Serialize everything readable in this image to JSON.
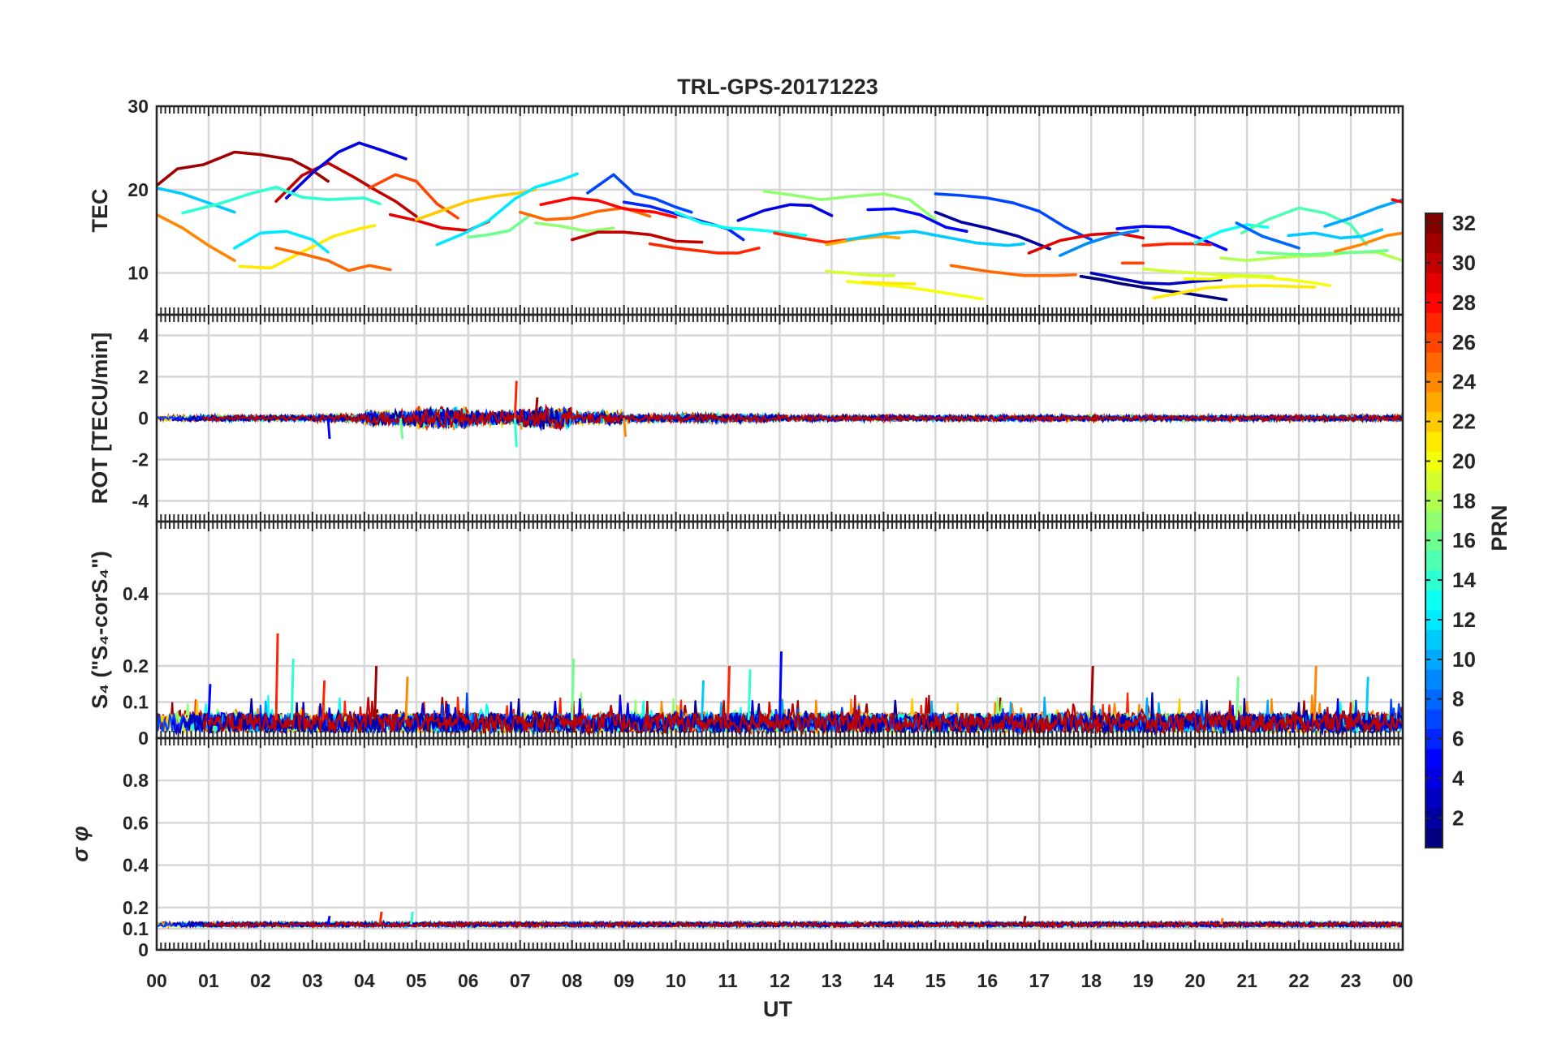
{
  "title": "TRL-GPS-20171223",
  "xlabel": "UT",
  "x_ticks": [
    "00",
    "01",
    "02",
    "03",
    "04",
    "05",
    "06",
    "07",
    "08",
    "09",
    "10",
    "11",
    "12",
    "13",
    "14",
    "15",
    "16",
    "17",
    "18",
    "19",
    "20",
    "21",
    "22",
    "23",
    "00"
  ],
  "colorbar": {
    "label": "PRN",
    "range": [
      1,
      32
    ],
    "ticks": [
      "2",
      "4",
      "6",
      "8",
      "10",
      "12",
      "14",
      "16",
      "18",
      "20",
      "22",
      "24",
      "26",
      "28",
      "30",
      "32"
    ],
    "colormap": "jet"
  },
  "chart_data": [
    {
      "type": "line",
      "panel": "TEC",
      "ylabel": "TEC",
      "ylim": [
        5,
        30
      ],
      "yticks": [
        "10",
        "20",
        "30"
      ],
      "xlim": [
        0,
        24
      ],
      "series": [
        {
          "prn": 31,
          "x": [
            0.0,
            0.4,
            0.9,
            1.5,
            2.0,
            2.6,
            3.0,
            3.3
          ],
          "y": [
            20.5,
            22.5,
            23.0,
            24.5,
            24.2,
            23.6,
            22.3,
            21.0
          ]
        },
        {
          "prn": 30,
          "x": [
            2.3,
            2.8,
            3.3,
            3.8,
            4.2,
            4.6,
            5.0
          ],
          "y": [
            18.6,
            21.7,
            23.2,
            21.5,
            20.0,
            18.6,
            16.8
          ]
        },
        {
          "prn": 4,
          "x": [
            2.5,
            3.0,
            3.5,
            3.9,
            4.3,
            4.8
          ],
          "y": [
            19.0,
            22.0,
            24.5,
            25.6,
            24.8,
            23.7
          ]
        },
        {
          "prn": 11,
          "x": [
            0.0,
            0.5,
            1.0,
            1.5
          ],
          "y": [
            20.2,
            19.5,
            18.4,
            17.3
          ]
        },
        {
          "prn": 14,
          "x": [
            0.5,
            1.2,
            1.8,
            2.3,
            2.8,
            3.3,
            4.0,
            4.3
          ],
          "y": [
            17.2,
            18.3,
            19.5,
            20.3,
            19.1,
            18.8,
            19.0,
            18.3
          ]
        },
        {
          "prn": 24,
          "x": [
            0.0,
            0.5,
            1.0,
            1.5
          ],
          "y": [
            17.0,
            15.4,
            13.3,
            11.5
          ]
        },
        {
          "prn": 21,
          "x": [
            1.6,
            2.2,
            2.8,
            3.4,
            3.9,
            4.2
          ],
          "y": [
            10.8,
            10.6,
            12.5,
            14.4,
            15.3,
            15.7
          ]
        },
        {
          "prn": 25,
          "x": [
            2.3,
            2.8,
            3.3,
            3.7,
            4.1,
            4.5
          ],
          "y": [
            13.0,
            12.3,
            11.5,
            10.3,
            10.9,
            10.4
          ]
        },
        {
          "prn": 12,
          "x": [
            1.5,
            2.0,
            2.5,
            3.0,
            3.3
          ],
          "y": [
            13.0,
            14.8,
            15.0,
            14.0,
            12.5
          ]
        },
        {
          "prn": 26,
          "x": [
            4.1,
            4.6,
            5.0,
            5.4,
            5.8
          ],
          "y": [
            20.2,
            21.8,
            21.0,
            18.3,
            16.6
          ]
        },
        {
          "prn": 29,
          "x": [
            4.5,
            5.0,
            5.5,
            6.0,
            6.4
          ],
          "y": [
            17.0,
            16.3,
            15.4,
            15.1,
            16.2
          ]
        },
        {
          "prn": 22,
          "x": [
            5.0,
            5.5,
            6.0,
            6.5,
            7.0,
            7.3
          ],
          "y": [
            16.4,
            17.5,
            18.6,
            19.2,
            19.6,
            20.0
          ]
        },
        {
          "prn": 16,
          "x": [
            6.0,
            6.4,
            6.8,
            7.2
          ],
          "y": [
            14.3,
            14.6,
            15.1,
            17.0
          ]
        },
        {
          "prn": 12,
          "x": [
            5.4,
            5.9,
            6.4,
            6.9,
            7.3,
            7.8,
            8.1
          ],
          "y": [
            13.4,
            14.7,
            16.3,
            18.9,
            20.3,
            21.2,
            21.9
          ]
        },
        {
          "prn": 25,
          "x": [
            7.0,
            7.5,
            8.0,
            8.5,
            9.0,
            9.5
          ],
          "y": [
            17.3,
            16.4,
            16.6,
            17.4,
            17.8,
            16.8
          ]
        },
        {
          "prn": 28,
          "x": [
            7.4,
            8.0,
            8.5,
            9.0,
            9.6,
            10.0
          ],
          "y": [
            18.2,
            19.0,
            18.7,
            17.7,
            17.3,
            16.7
          ]
        },
        {
          "prn": 7,
          "x": [
            8.3,
            8.8,
            9.2,
            9.6,
            10.0,
            10.3
          ],
          "y": [
            19.6,
            21.8,
            19.5,
            18.9,
            17.9,
            17.3
          ]
        },
        {
          "prn": 17,
          "x": [
            7.3,
            7.8,
            8.3,
            8.8
          ],
          "y": [
            16.0,
            15.6,
            15.0,
            15.4
          ]
        },
        {
          "prn": 30,
          "x": [
            8.0,
            8.5,
            9.0,
            9.5,
            10.0,
            10.5
          ],
          "y": [
            14.0,
            14.9,
            14.9,
            14.6,
            13.8,
            13.7
          ]
        },
        {
          "prn": 27,
          "x": [
            9.5,
            10.0,
            10.4,
            10.8,
            11.2,
            11.6
          ],
          "y": [
            13.5,
            13.0,
            12.7,
            12.4,
            12.4,
            13.0
          ]
        },
        {
          "prn": 6,
          "x": [
            9.0,
            9.5,
            10.0,
            10.5,
            11.0,
            11.3
          ],
          "y": [
            18.5,
            18.0,
            17.1,
            16.2,
            15.3,
            14.0
          ]
        },
        {
          "prn": 13,
          "x": [
            10.0,
            10.5,
            11.0,
            11.5,
            12.0,
            12.5
          ],
          "y": [
            17.3,
            16.0,
            15.4,
            15.2,
            14.9,
            14.5
          ]
        },
        {
          "prn": 4,
          "x": [
            11.2,
            11.7,
            12.2,
            12.6,
            13.0
          ],
          "y": [
            16.3,
            17.5,
            18.2,
            18.1,
            16.9
          ]
        },
        {
          "prn": 17,
          "x": [
            11.7,
            12.2,
            12.8,
            13.4,
            14.0,
            14.5,
            15.0
          ],
          "y": [
            19.8,
            19.4,
            18.8,
            19.2,
            19.5,
            18.8,
            16.4
          ]
        },
        {
          "prn": 27,
          "x": [
            11.9,
            12.4,
            12.9,
            13.3
          ],
          "y": [
            14.8,
            14.2,
            13.7,
            14.0
          ]
        },
        {
          "prn": 23,
          "x": [
            12.9,
            13.5,
            14.0,
            14.3
          ],
          "y": [
            13.4,
            14.1,
            14.4,
            14.2
          ]
        },
        {
          "prn": 5,
          "x": [
            13.7,
            14.2,
            14.7,
            15.2,
            15.6
          ],
          "y": [
            17.6,
            17.7,
            17.0,
            15.5,
            15.0
          ]
        },
        {
          "prn": 11,
          "x": [
            13.3,
            14.0,
            14.6,
            15.2,
            15.8,
            16.4,
            16.7
          ],
          "y": [
            14.0,
            14.7,
            15.0,
            14.3,
            13.6,
            13.3,
            13.5
          ]
        },
        {
          "prn": 19,
          "x": [
            12.9,
            13.3,
            13.8,
            14.2
          ],
          "y": [
            10.2,
            10.0,
            9.7,
            9.7
          ]
        },
        {
          "prn": 20,
          "x": [
            13.3,
            13.8,
            14.3,
            14.8,
            15.3,
            15.9
          ],
          "y": [
            9.0,
            8.7,
            8.4,
            8.0,
            7.5,
            6.9
          ]
        },
        {
          "prn": 21,
          "x": [
            13.6,
            14.0,
            14.6
          ],
          "y": [
            8.9,
            8.8,
            8.7
          ]
        },
        {
          "prn": 7,
          "x": [
            15.0,
            15.5,
            16.0,
            16.5,
            17.0,
            17.5,
            18.0
          ],
          "y": [
            19.5,
            19.3,
            19.0,
            18.4,
            17.4,
            15.5,
            14.0
          ]
        },
        {
          "prn": 2,
          "x": [
            15.0,
            15.5,
            16.0,
            16.6,
            17.2
          ],
          "y": [
            17.3,
            16.1,
            15.4,
            14.4,
            12.9
          ]
        },
        {
          "prn": 25,
          "x": [
            15.3,
            16.0,
            16.7,
            17.3,
            17.7
          ],
          "y": [
            10.9,
            10.2,
            9.7,
            9.7,
            9.8
          ]
        },
        {
          "prn": 29,
          "x": [
            16.8,
            17.4,
            18.0,
            18.5,
            19.0
          ],
          "y": [
            12.4,
            13.9,
            14.6,
            14.8,
            14.2
          ]
        },
        {
          "prn": 9,
          "x": [
            17.4,
            17.9,
            18.4,
            18.9
          ],
          "y": [
            12.1,
            13.5,
            14.5,
            15.1
          ]
        },
        {
          "prn": 1,
          "x": [
            17.8,
            18.2,
            18.6,
            19.0,
            19.4,
            19.8,
            20.2,
            20.6
          ],
          "y": [
            9.6,
            9.2,
            8.7,
            8.3,
            7.9,
            7.6,
            7.2,
            6.8
          ]
        },
        {
          "prn": 3,
          "x": [
            18.0,
            18.5,
            19.0,
            19.5,
            20.0,
            20.5
          ],
          "y": [
            10.0,
            9.4,
            8.8,
            8.7,
            9.0,
            9.2
          ]
        },
        {
          "prn": 5,
          "x": [
            18.5,
            19.0,
            19.5,
            20.0,
            20.6
          ],
          "y": [
            15.3,
            15.6,
            15.5,
            14.4,
            12.8
          ]
        },
        {
          "prn": 27,
          "x": [
            19.0,
            19.5,
            20.0,
            20.3
          ],
          "y": [
            13.3,
            13.5,
            13.5,
            13.4
          ]
        },
        {
          "prn": 26,
          "x": [
            18.6,
            19.0
          ],
          "y": [
            11.2,
            11.2
          ]
        },
        {
          "prn": 20,
          "x": [
            19.8,
            20.3,
            20.8,
            21.3,
            21.8,
            22.3,
            22.6
          ],
          "y": [
            9.3,
            9.3,
            9.6,
            9.5,
            9.2,
            8.8,
            8.5
          ]
        },
        {
          "prn": 19,
          "x": [
            19.0,
            19.5,
            20.0,
            20.5,
            21.0,
            21.5
          ],
          "y": [
            10.5,
            10.2,
            10.0,
            9.8,
            9.7,
            9.6
          ]
        },
        {
          "prn": 21,
          "x": [
            19.2,
            19.7,
            20.2,
            20.7,
            21.3,
            21.8,
            22.3
          ],
          "y": [
            7.0,
            7.6,
            8.2,
            8.4,
            8.5,
            8.4,
            8.3
          ]
        },
        {
          "prn": 13,
          "x": [
            20.0,
            20.5,
            21.0,
            21.4
          ],
          "y": [
            13.6,
            15.0,
            15.8,
            15.5
          ]
        },
        {
          "prn": 15,
          "x": [
            20.9,
            21.4,
            22.0,
            22.5,
            23.0,
            23.3
          ],
          "y": [
            14.8,
            16.4,
            17.8,
            17.2,
            15.8,
            13.4
          ]
        },
        {
          "prn": 8,
          "x": [
            20.8,
            21.3,
            21.8,
            22.0
          ],
          "y": [
            16.0,
            14.4,
            13.4,
            13.0
          ]
        },
        {
          "prn": 11,
          "x": [
            21.8,
            22.3,
            22.8,
            23.2,
            23.6
          ],
          "y": [
            14.5,
            14.8,
            14.2,
            14.4,
            15.2
          ]
        },
        {
          "prn": 18,
          "x": [
            20.5,
            21.0,
            21.5,
            22.0,
            22.5,
            23.0,
            23.5,
            24.0
          ],
          "y": [
            11.8,
            11.5,
            11.8,
            12.0,
            12.1,
            12.5,
            12.5,
            11.5
          ]
        },
        {
          "prn": 16,
          "x": [
            21.2,
            21.7,
            22.2,
            22.7,
            23.2,
            23.7
          ],
          "y": [
            12.5,
            12.3,
            12.2,
            12.4,
            12.5,
            12.7
          ]
        },
        {
          "prn": 10,
          "x": [
            22.5,
            23.0,
            23.5,
            24.0
          ],
          "y": [
            15.6,
            16.6,
            17.8,
            18.8
          ]
        },
        {
          "prn": 24,
          "x": [
            22.7,
            23.2,
            23.7,
            24.0
          ],
          "y": [
            12.6,
            13.4,
            14.5,
            14.8
          ]
        },
        {
          "prn": 28,
          "x": [
            23.8,
            24.0
          ],
          "y": [
            18.8,
            18.5
          ]
        }
      ]
    },
    {
      "type": "line",
      "panel": "ROT",
      "ylabel": "ROT [TECU/min]",
      "ylim": [
        -5,
        5
      ],
      "yticks": [
        "-4",
        "-2",
        "0",
        "2",
        "4"
      ],
      "xlim": [
        0,
        24
      ],
      "baseline": 0,
      "noise_amplitude_by_hour": [
        0.15,
        0.15,
        0.15,
        0.2,
        0.4,
        0.6,
        0.4,
        0.6,
        0.35,
        0.2,
        0.25,
        0.2,
        0.15,
        0.15,
        0.15,
        0.15,
        0.15,
        0.15,
        0.15,
        0.15,
        0.15,
        0.15,
        0.15,
        0.15
      ],
      "spikes": [
        {
          "x": 6.9,
          "y": 1.8
        },
        {
          "x": 6.9,
          "y": -1.4
        },
        {
          "x": 3.3,
          "y": -1.0
        },
        {
          "x": 7.3,
          "y": 1.0
        },
        {
          "x": 9.0,
          "y": -0.9
        },
        {
          "x": 4.7,
          "y": -1.0
        }
      ]
    },
    {
      "type": "line",
      "panel": "S4",
      "ylabel": "S₄ (\"S₄-corS₄\")",
      "ylim": [
        0,
        0.6
      ],
      "yticks": [
        "0",
        "0.1",
        "0.2",
        "0.4"
      ],
      "xlim": [
        0,
        24
      ],
      "base_level": 0.05,
      "spikes": [
        {
          "x": 2.3,
          "y": 0.29
        },
        {
          "x": 2.6,
          "y": 0.22
        },
        {
          "x": 1.0,
          "y": 0.15
        },
        {
          "x": 4.2,
          "y": 0.2
        },
        {
          "x": 4.8,
          "y": 0.17
        },
        {
          "x": 8.0,
          "y": 0.22
        },
        {
          "x": 10.5,
          "y": 0.16
        },
        {
          "x": 11.0,
          "y": 0.2
        },
        {
          "x": 11.4,
          "y": 0.19
        },
        {
          "x": 12.0,
          "y": 0.24
        },
        {
          "x": 18.0,
          "y": 0.2
        },
        {
          "x": 22.3,
          "y": 0.2
        },
        {
          "x": 20.8,
          "y": 0.17
        },
        {
          "x": 23.3,
          "y": 0.17
        },
        {
          "x": 3.2,
          "y": 0.16
        }
      ]
    },
    {
      "type": "line",
      "panel": "sigma_phi",
      "ylabel": "σ φ",
      "ylim": [
        0,
        1
      ],
      "yticks": [
        "0",
        "0.1",
        "0.2",
        "0.4",
        "0.6",
        "0.8"
      ],
      "xlim": [
        0,
        24
      ],
      "base_level": 0.12,
      "spikes": [
        {
          "x": 4.3,
          "y": 0.18
        },
        {
          "x": 4.9,
          "y": 0.18
        },
        {
          "x": 3.3,
          "y": 0.16
        },
        {
          "x": 16.7,
          "y": 0.16
        },
        {
          "x": 20.5,
          "y": 0.15
        }
      ]
    }
  ]
}
